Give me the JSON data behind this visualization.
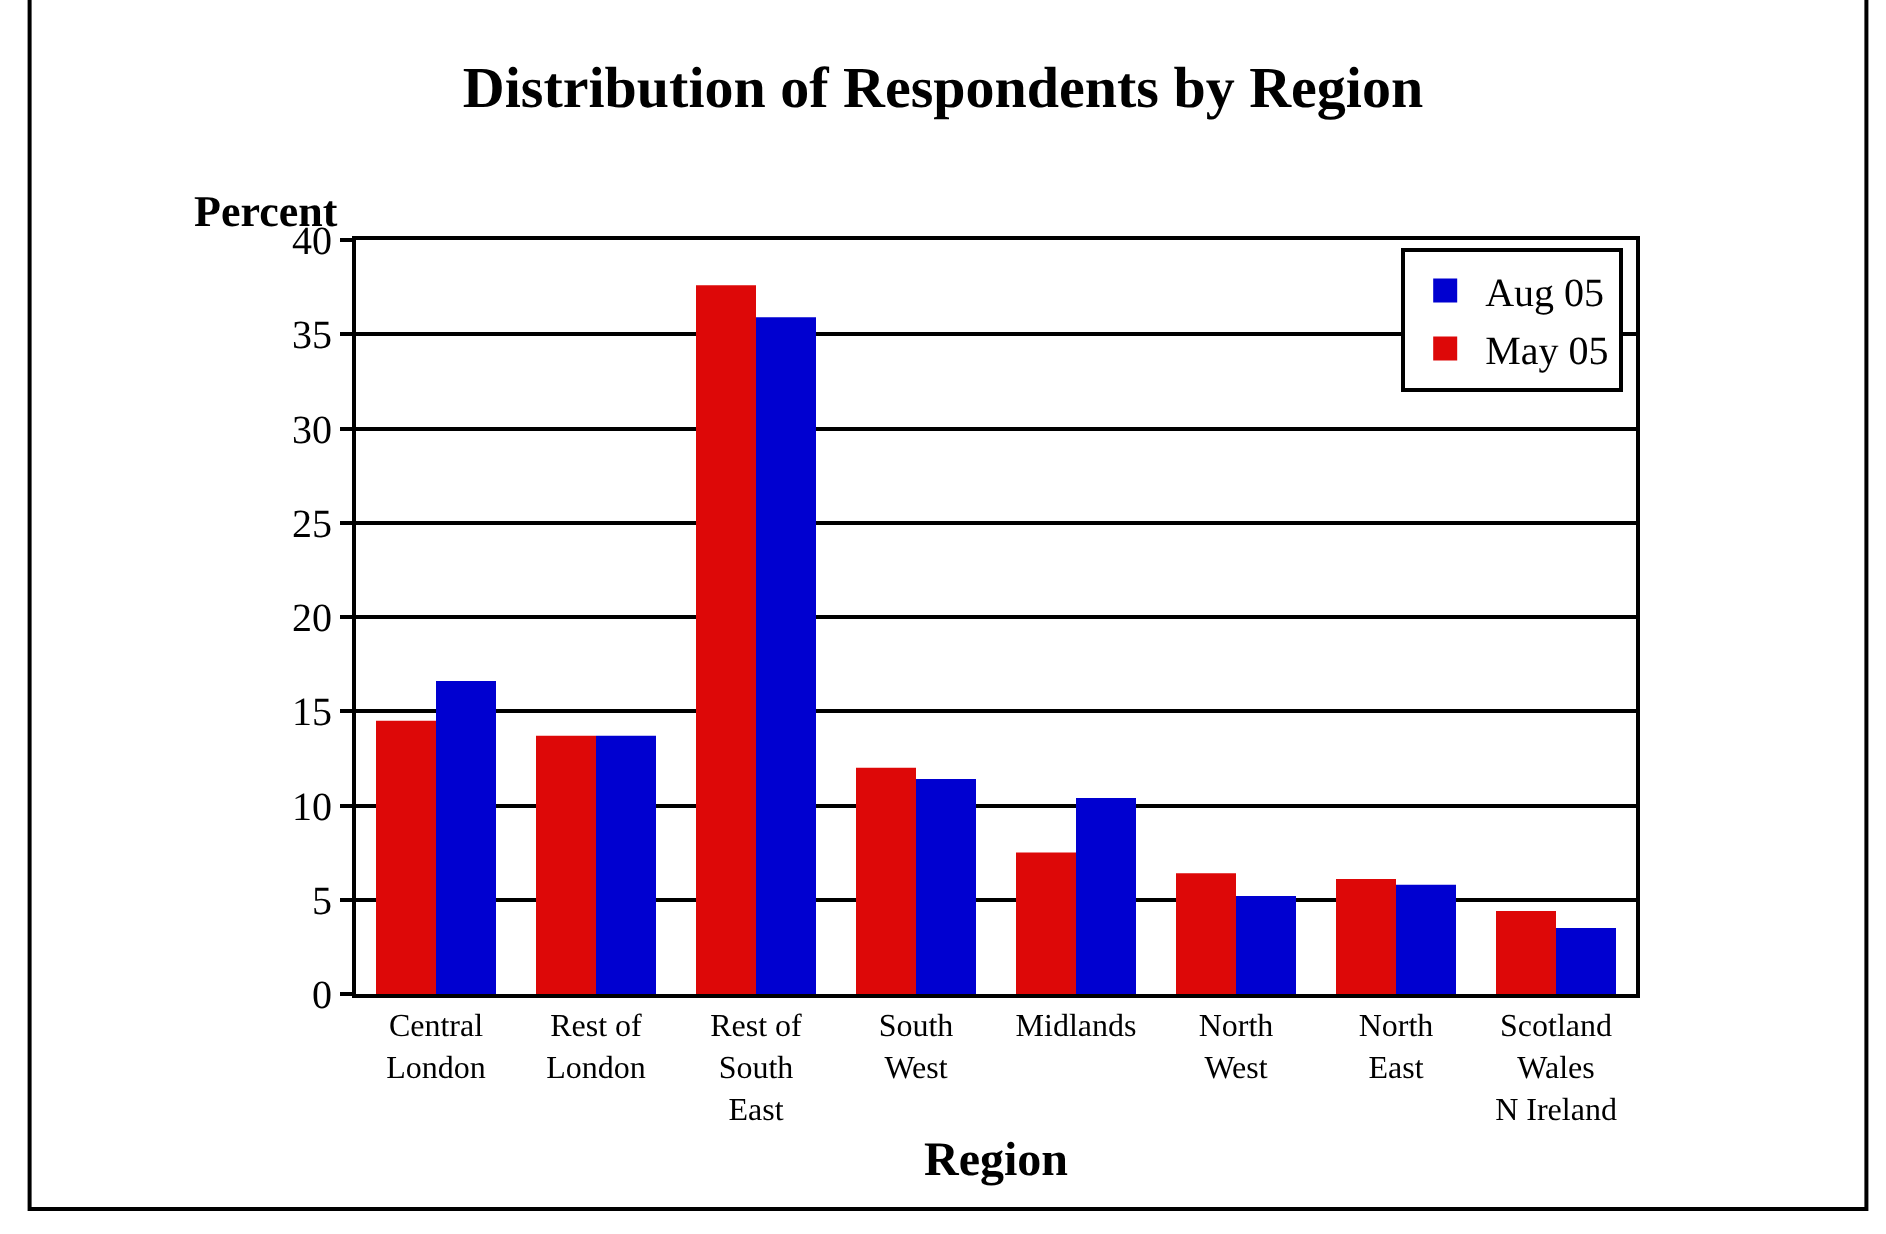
{
  "chart_data": {
    "type": "bar",
    "title": "Distribution of Respondents by Region",
    "xlabel": "Region",
    "ylabel": "Percent",
    "categories": [
      "Central\nLondon",
      "Rest of\nLondon",
      "Rest of\nSouth\nEast",
      "South\nWest",
      "Midlands",
      "North\nWest",
      "North\nEast",
      "Scotland\nWales\nN Ireland"
    ],
    "series": [
      {
        "name": "May 05",
        "color": "#dd0808",
        "values": [
          14.5,
          13.7,
          37.6,
          12.0,
          7.5,
          6.4,
          6.1,
          4.4
        ]
      },
      {
        "name": "Aug 05",
        "color": "#0000d0",
        "values": [
          16.6,
          13.7,
          35.9,
          11.4,
          10.4,
          5.2,
          5.8,
          3.5
        ]
      }
    ],
    "ylim": [
      0,
      40
    ],
    "yticks": [
      0,
      5,
      10,
      15,
      20,
      25,
      30,
      35,
      40
    ],
    "grid": "y",
    "legend": "top right"
  }
}
